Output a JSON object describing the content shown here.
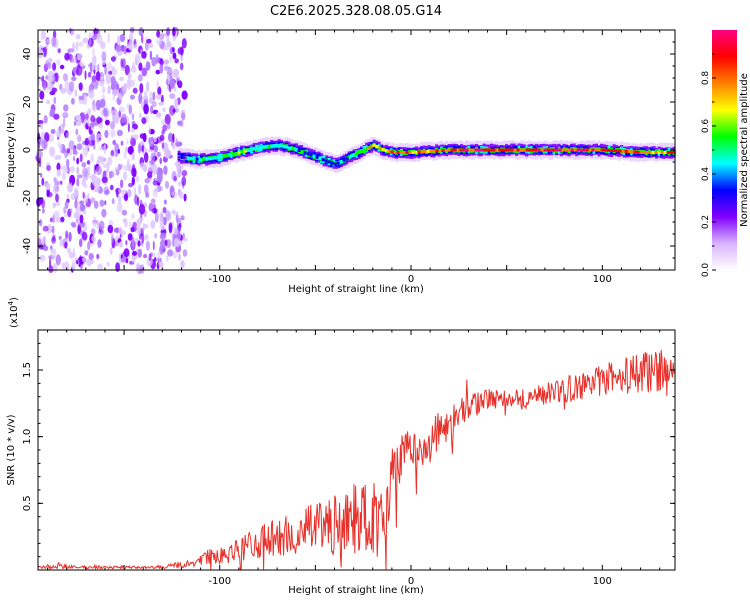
{
  "title": "C2E6.2025.328.08.05.G14",
  "chart_data": [
    {
      "type": "heatmap",
      "title": "C2E6.2025.328.08.05.G14",
      "xlabel": "Height of straight line (km)",
      "ylabel": "Frequency (Hz)",
      "xlim": [
        -195,
        138
      ],
      "ylim": [
        -50,
        50
      ],
      "xticks": [
        -100,
        0,
        100
      ],
      "yticks": [
        -40,
        -20,
        0,
        20,
        40
      ],
      "colorbar": {
        "label": "Normalized spectral amplitude",
        "range": [
          0,
          1
        ],
        "ticks": [
          0.0,
          0.2,
          0.4,
          0.6,
          0.8
        ],
        "colors": [
          "#ffffff",
          "#d9b3ff",
          "#7f00ff",
          "#0000ff",
          "#00ffff",
          "#00ff00",
          "#ffff00",
          "#ff8000",
          "#ff0000",
          "#ff0080"
        ]
      },
      "noise_region_x": [
        -195,
        -118
      ],
      "signal_start_x": -122,
      "signal_trace": {
        "x": [
          -122,
          -110,
          -100,
          -90,
          -80,
          -70,
          -60,
          -50,
          -40,
          -33,
          -25,
          -20,
          -15,
          -10,
          0,
          20,
          40,
          60,
          80,
          100,
          120,
          136
        ],
        "y": [
          -3,
          -4,
          -3,
          -1,
          1,
          2,
          0,
          -3,
          -6,
          -3,
          0,
          2,
          0,
          -1,
          -1,
          0,
          0,
          0,
          0,
          0,
          -1,
          -1
        ],
        "peak_amplitude": [
          0.35,
          0.4,
          0.5,
          0.55,
          0.5,
          0.5,
          0.45,
          0.4,
          0.35,
          0.5,
          0.6,
          0.7,
          0.65,
          0.8,
          0.8,
          0.85,
          0.9,
          0.85,
          0.9,
          0.85,
          0.8,
          0.75
        ]
      }
    },
    {
      "type": "line",
      "xlabel": "Height of straight line (km)",
      "ylabel": "SNR (10 * v/v)",
      "y_multiplier_label": "(x10",
      "y_multiplier_exponent": "4",
      "y_multiplier_close": ")",
      "xlim": [
        -195,
        138
      ],
      "ylim": [
        0,
        1.8
      ],
      "xticks": [
        -100,
        0,
        100
      ],
      "yticks": [
        0.5,
        1.0,
        1.5
      ],
      "series": [
        {
          "name": "SNR",
          "color": "#e8312b",
          "x": [
            -195,
            -185,
            -175,
            -165,
            -155,
            -145,
            -135,
            -125,
            -115,
            -105,
            -95,
            -85,
            -75,
            -65,
            -55,
            -45,
            -35,
            -25,
            -18,
            -14,
            -10,
            -5,
            0,
            5,
            10,
            15,
            20,
            25,
            30,
            40,
            50,
            60,
            70,
            80,
            90,
            100,
            110,
            120,
            130,
            138
          ],
          "y": [
            0.02,
            0.03,
            0.02,
            0.02,
            0.02,
            0.02,
            0.02,
            0.03,
            0.05,
            0.1,
            0.12,
            0.18,
            0.22,
            0.25,
            0.3,
            0.32,
            0.35,
            0.42,
            0.38,
            0.5,
            0.7,
            0.85,
            0.9,
            0.88,
            0.95,
            1.05,
            1.1,
            1.18,
            1.22,
            1.28,
            1.3,
            1.28,
            1.32,
            1.35,
            1.38,
            1.42,
            1.45,
            1.48,
            1.5,
            1.52
          ],
          "noise_amplitude": [
            0.01,
            0.02,
            0.01,
            0.01,
            0.01,
            0.01,
            0.01,
            0.02,
            0.03,
            0.06,
            0.08,
            0.1,
            0.14,
            0.16,
            0.18,
            0.2,
            0.25,
            0.28,
            0.3,
            0.3,
            0.22,
            0.18,
            0.15,
            0.15,
            0.15,
            0.15,
            0.12,
            0.1,
            0.1,
            0.08,
            0.08,
            0.08,
            0.08,
            0.1,
            0.1,
            0.12,
            0.14,
            0.16,
            0.16,
            0.15
          ]
        }
      ]
    }
  ]
}
